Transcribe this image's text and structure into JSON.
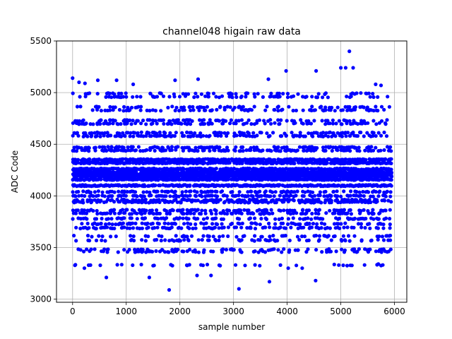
{
  "chart_data": {
    "type": "scatter",
    "title": "channel048 higain raw data",
    "xlabel": "sample number",
    "ylabel": "ADC Code",
    "xlim": [
      -300,
      6230
    ],
    "ylim": [
      2970,
      5500
    ],
    "xticks": [
      0,
      1000,
      2000,
      3000,
      4000,
      5000,
      6000
    ],
    "yticks": [
      3000,
      3500,
      4000,
      4500,
      5000,
      5500
    ],
    "xtick_labels": [
      "0",
      "1000",
      "2000",
      "3000",
      "4000",
      "5000",
      "6000"
    ],
    "ytick_labels": [
      "3000",
      "3500",
      "4000",
      "4500",
      "5000",
      "5500"
    ],
    "grid": true,
    "marker_color": "#0000ff",
    "n_samples": 5940,
    "series": [
      {
        "values_description": "ADC codes clustered on discrete bands",
        "dense_bands": [
          4100,
          4160,
          4190,
          4210,
          4230,
          4260,
          4320,
          4350
        ],
        "sparse_bands": [
          3330,
          3460,
          3480,
          3570,
          3610,
          3690,
          3730,
          3780,
          3830,
          3860,
          3940,
          3960,
          4000,
          4040,
          4440,
          4470,
          4580,
          4610,
          4700,
          4730,
          4830,
          4860,
          4960,
          4990
        ],
        "outliers": [
          {
            "x": 0,
            "y": 5140
          },
          {
            "x": 120,
            "y": 5100
          },
          {
            "x": 230,
            "y": 5090
          },
          {
            "x": 470,
            "y": 5120
          },
          {
            "x": 820,
            "y": 5120
          },
          {
            "x": 1130,
            "y": 5080
          },
          {
            "x": 1910,
            "y": 5120
          },
          {
            "x": 2340,
            "y": 5130
          },
          {
            "x": 3650,
            "y": 5130
          },
          {
            "x": 3980,
            "y": 5210
          },
          {
            "x": 4540,
            "y": 5210
          },
          {
            "x": 5000,
            "y": 5240
          },
          {
            "x": 5090,
            "y": 5240
          },
          {
            "x": 5160,
            "y": 5400
          },
          {
            "x": 5230,
            "y": 5240
          },
          {
            "x": 5650,
            "y": 5080
          },
          {
            "x": 5750,
            "y": 5070
          },
          {
            "x": 1800,
            "y": 3090
          },
          {
            "x": 3100,
            "y": 3100
          },
          {
            "x": 3670,
            "y": 3170
          },
          {
            "x": 4530,
            "y": 3180
          },
          {
            "x": 630,
            "y": 3210
          },
          {
            "x": 1430,
            "y": 3210
          },
          {
            "x": 2320,
            "y": 3230
          },
          {
            "x": 2580,
            "y": 3230
          },
          {
            "x": 220,
            "y": 3300
          },
          {
            "x": 4020,
            "y": 3300
          },
          {
            "x": 4280,
            "y": 3300
          },
          {
            "x": 5700,
            "y": 3340
          }
        ]
      }
    ]
  }
}
